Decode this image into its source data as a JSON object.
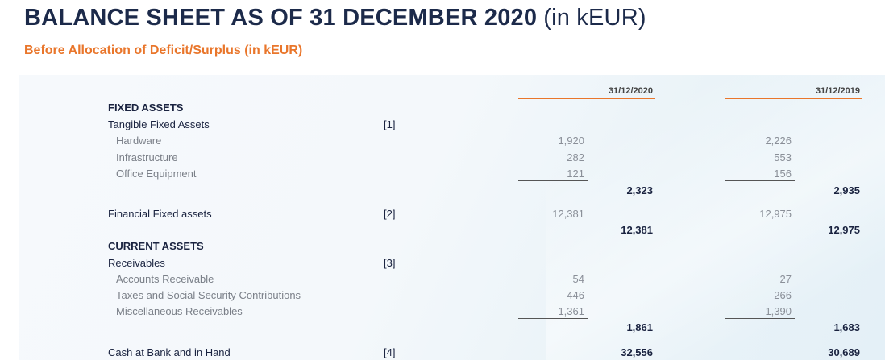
{
  "header": {
    "title": "BALANCE SHEET AS OF 31 DECEMBER 2020",
    "title_unit": "(in kEUR)",
    "subtitle": "Before Allocation of Deficit/Surplus (in kEUR)",
    "accent_color": "#e9762b"
  },
  "columns": [
    "31/12/2020",
    "31/12/2019"
  ],
  "sections": {
    "fixed_assets": "FIXED ASSETS",
    "current_assets": "CURRENT ASSETS"
  },
  "rows": {
    "tangible": {
      "label": "Tangible Fixed Assets",
      "note": "[1]"
    },
    "hardware": {
      "label": "Hardware",
      "y2020": "1,920",
      "y2019": "2,226"
    },
    "infrastructure": {
      "label": "Infrastructure",
      "y2020": "282",
      "y2019": "553"
    },
    "office": {
      "label": "Office Equipment",
      "y2020": "121",
      "y2019": "156"
    },
    "tangible_total": {
      "y2020": "2,323",
      "y2019": "2,935"
    },
    "financial": {
      "label": "Financial Fixed assets",
      "note": "[2]",
      "y2020": "12,381",
      "y2019": "12,975"
    },
    "financial_total": {
      "y2020": "12,381",
      "y2019": "12,975"
    },
    "receivables": {
      "label": "Receivables",
      "note": "[3]"
    },
    "accounts_receivable": {
      "label": "Accounts Receivable",
      "y2020": "54",
      "y2019": "27"
    },
    "taxes": {
      "label": "Taxes and Social Security Contributions",
      "y2020": "446",
      "y2019": "266"
    },
    "misc": {
      "label": "Miscellaneous Receivables",
      "y2020": "1,361",
      "y2019": "1,390"
    },
    "receivables_total": {
      "y2020": "1,861",
      "y2019": "1,683"
    },
    "cash": {
      "label": "Cash at Bank and in Hand",
      "note": "[4]",
      "y2020": "32,556",
      "y2019": "30,689"
    }
  }
}
